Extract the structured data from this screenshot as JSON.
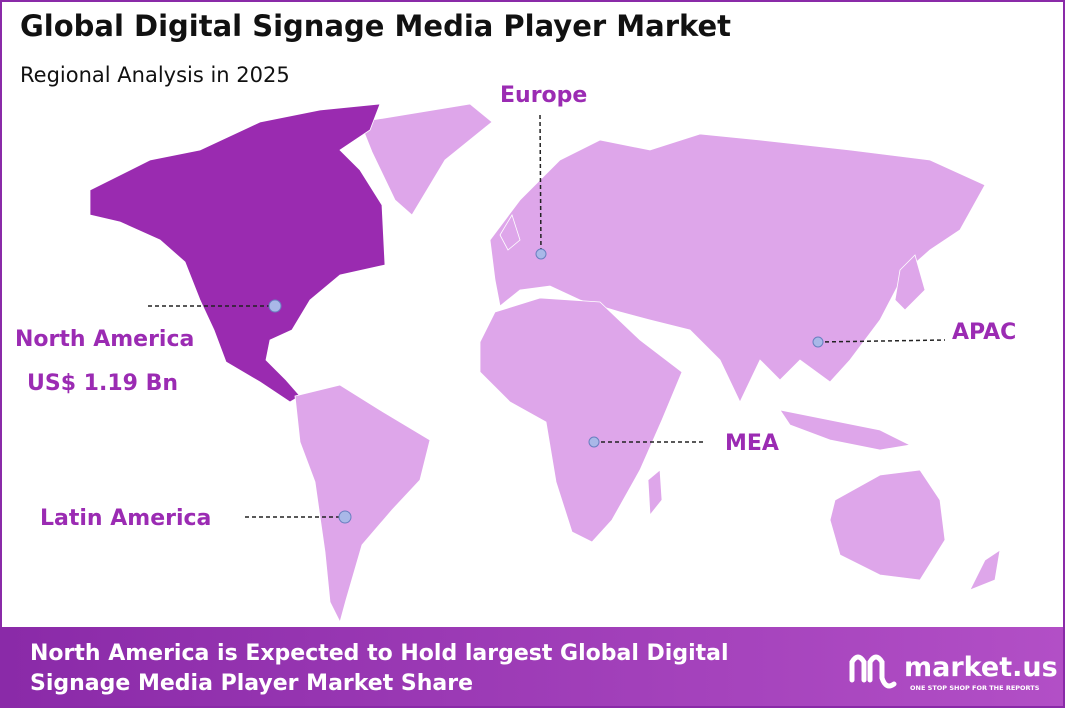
{
  "header": {
    "title": "Global Digital Signage Media Player Market",
    "subtitle": "Regional Analysis in 2025"
  },
  "regions": [
    {
      "label": "North America",
      "value": "US$ 1.19 Bn"
    },
    {
      "label": "Europe"
    },
    {
      "label": "APAC"
    },
    {
      "label": "MEA"
    },
    {
      "label": "Latin America"
    }
  ],
  "footer": {
    "line1": "North America is Expected to Hold largest Global Digital",
    "line2": "Signage Media Player Market Share",
    "brand": "market.us",
    "tagline": "ONE STOP SHOP FOR THE REPORTS"
  }
}
